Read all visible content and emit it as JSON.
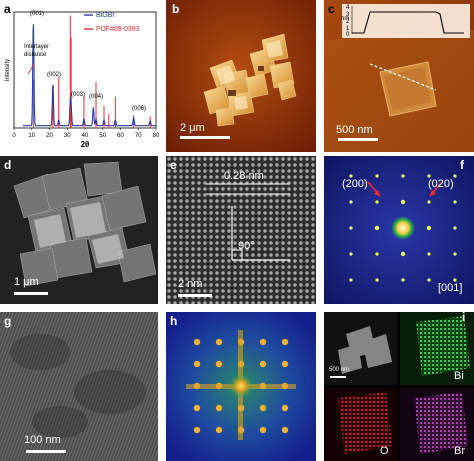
{
  "panels": {
    "a": {
      "label": "a",
      "chart_data": {
        "type": "line",
        "xlabel": "2θ",
        "ylabel": "Intensity",
        "xlim": [
          0,
          80
        ],
        "x_ticks": [
          "0",
          "10",
          "20",
          "30",
          "40",
          "50",
          "60",
          "70",
          "80"
        ],
        "series": [
          {
            "name": "BiOBr",
            "color": "#2b3aa8",
            "peaks": [
              [
                10.9,
                0.92
              ],
              [
                21.9,
                0.37
              ],
              [
                25.2,
                0.05
              ],
              [
                31.7,
                0.19
              ],
              [
                32.2,
                0.14
              ],
              [
                39.4,
                0.06
              ],
              [
                44.7,
                0.16
              ],
              [
                46.2,
                0.06
              ],
              [
                50.7,
                0.05
              ],
              [
                57.1,
                0.05
              ],
              [
                67.4,
                0.07
              ],
              [
                76.7,
                0.04
              ]
            ]
          },
          {
            "name": "PDF#09-0393",
            "color": "#e03030",
            "peaks": [
              [
                10.9,
                0.42
              ],
              [
                21.9,
                0.3
              ],
              [
                25.2,
                0.44
              ],
              [
                31.7,
                0.97
              ],
              [
                32.2,
                0.78
              ],
              [
                39.4,
                0.28
              ],
              [
                46.2,
                0.4
              ],
              [
                50.7,
                0.19
              ],
              [
                53.4,
                0.12
              ],
              [
                57.1,
                0.27
              ],
              [
                67.4,
                0.11
              ],
              [
                76.7,
                0.1
              ]
            ]
          }
        ],
        "annotations": [
          "(001)",
          "(002)",
          "(003)",
          "(004)",
          "(006)",
          "Interlayer distance"
        ]
      }
    },
    "b": {
      "label": "b",
      "scale": "2 μm"
    },
    "c": {
      "label": "c",
      "scale": "500 nm",
      "inset_y_axis_label": "nm",
      "inset_y_ticks": [
        "4",
        "3",
        "2",
        "1",
        "0"
      ]
    },
    "d": {
      "label": "d",
      "scale": "1 μm"
    },
    "e": {
      "label": "e",
      "scale": "2 nm",
      "spacing": "0.28 nm",
      "angle": "90°"
    },
    "f": {
      "label": "f",
      "spot1": "(200)",
      "spot2": "(020)",
      "zone": "[001]"
    },
    "g": {
      "label": "g",
      "scale": "100 nm"
    },
    "h": {
      "label": "h"
    },
    "i": {
      "label": "i",
      "scale": "500 nm",
      "maps": [
        "Bi",
        "O",
        "Br"
      ]
    }
  }
}
